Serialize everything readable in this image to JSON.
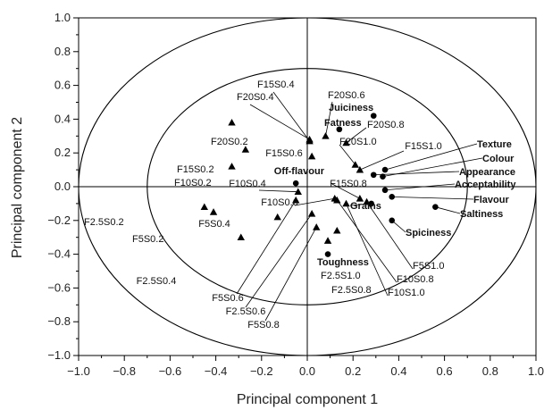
{
  "chart_data": {
    "type": "scatter",
    "title": "",
    "xlabel": "Principal component 1",
    "ylabel": "Principal component 2",
    "xlim": [
      -1.0,
      1.0
    ],
    "ylim": [
      -1.0,
      1.0
    ],
    "xticks": [
      "−1.0",
      "−0.8",
      "−0.6",
      "−0.4",
      "−0.2",
      "0.0",
      "0.2",
      "0.4",
      "0.6",
      "0.8",
      "1.0"
    ],
    "yticks": [
      "1.0",
      "0.8",
      "0.6",
      "0.4",
      "0.2",
      "0.0",
      "−0.2",
      "−0.4",
      "−0.6",
      "−0.8",
      "−1.0"
    ],
    "grid": false,
    "correlation_circles": [
      1.0,
      0.7
    ],
    "series": [
      {
        "marker": "triangle",
        "points": [
          {
            "label": "F2.5S0.2",
            "x": -0.45,
            "y": -0.12
          },
          {
            "label": "F5S0.2",
            "x": -0.41,
            "y": -0.15
          },
          {
            "label": "F2.5S0.4",
            "x": -0.29,
            "y": -0.3
          },
          {
            "label": "F5S0.4",
            "x": -0.13,
            "y": -0.18
          },
          {
            "label": "F5S0.6",
            "x": -0.05,
            "y": -0.08
          },
          {
            "label": "F10S0.2",
            "x": -0.33,
            "y": 0.12
          },
          {
            "label": "F10S0.4",
            "x": -0.04,
            "y": -0.03
          },
          {
            "label": "F10S0.6",
            "x": 0.12,
            "y": -0.07
          },
          {
            "label": "F15S0.2",
            "x": -0.27,
            "y": 0.22
          },
          {
            "label": "F15S0.4",
            "x": 0.01,
            "y": 0.27
          },
          {
            "label": "F15S0.6",
            "x": 0.02,
            "y": 0.18
          },
          {
            "label": "F15S0.8",
            "x": 0.23,
            "y": -0.07
          },
          {
            "label": "F15S1.0",
            "x": 0.23,
            "y": 0.1
          },
          {
            "label": "F20S0.2",
            "x": -0.33,
            "y": 0.38
          },
          {
            "label": "F20S0.4",
            "x": 0.01,
            "y": 0.28
          },
          {
            "label": "F20S0.6",
            "x": 0.08,
            "y": 0.3
          },
          {
            "label": "F20S0.8",
            "x": 0.17,
            "y": 0.26
          },
          {
            "label": "F20S1.0",
            "x": 0.21,
            "y": 0.13
          },
          {
            "label": "F2.5S0.6",
            "x": 0.02,
            "y": -0.16
          },
          {
            "label": "F2.5S0.8",
            "x": 0.09,
            "y": -0.32
          },
          {
            "label": "F2.5S1.0",
            "x": 0.13,
            "y": -0.26
          },
          {
            "label": "F5S0.8",
            "x": 0.04,
            "y": -0.24
          },
          {
            "label": "F5S1.0",
            "x": 0.26,
            "y": -0.09
          },
          {
            "label": "F10S0.8",
            "x": 0.13,
            "y": -0.08
          },
          {
            "label": "F10S1.0",
            "x": 0.17,
            "y": -0.1
          }
        ]
      },
      {
        "marker": "circle",
        "points": [
          {
            "label": "Juiciness",
            "x": 0.29,
            "y": 0.42
          },
          {
            "label": "Fatness",
            "x": 0.14,
            "y": 0.34
          },
          {
            "label": "Off-flavour",
            "x": -0.05,
            "y": 0.02
          },
          {
            "label": "Texture",
            "x": 0.34,
            "y": 0.1
          },
          {
            "label": "Colour",
            "x": 0.33,
            "y": 0.06
          },
          {
            "label": "Appearance",
            "x": 0.29,
            "y": 0.07
          },
          {
            "label": "Acceptability",
            "x": 0.34,
            "y": -0.02
          },
          {
            "label": "Flavour",
            "x": 0.37,
            "y": -0.06
          },
          {
            "label": "Saltiness",
            "x": 0.56,
            "y": -0.12
          },
          {
            "label": "Grains",
            "x": 0.28,
            "y": -0.1
          },
          {
            "label": "Spiciness",
            "x": 0.37,
            "y": -0.2
          },
          {
            "label": "Toughness",
            "x": 0.09,
            "y": -0.4
          }
        ]
      }
    ]
  }
}
